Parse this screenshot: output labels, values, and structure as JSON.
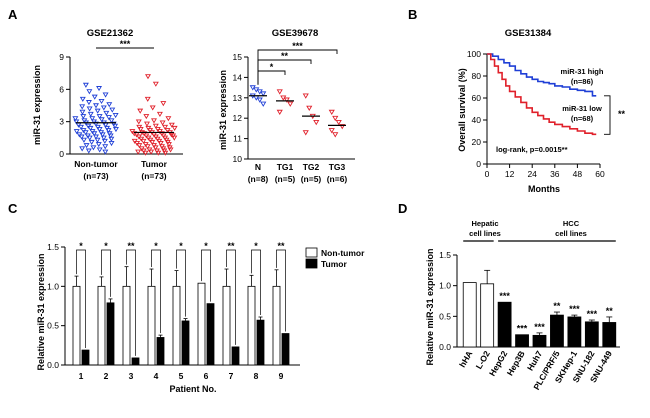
{
  "panel_labels": [
    "A",
    "B",
    "C",
    "D"
  ],
  "chart_data": [
    {
      "id": "A1",
      "type": "scatter",
      "title": "GSE21362",
      "ylabel": "miR-31 expression",
      "ylim": [
        0,
        9
      ],
      "yticks": [
        "0",
        "3",
        "6",
        "9"
      ],
      "groups": [
        {
          "name": "Non-tumor",
          "n": "(n=73)",
          "color": "#1f3fd6",
          "marker": "triangle-down",
          "mean": 2.9,
          "values": [
            6.4,
            6.1,
            5.8,
            5.5,
            5.3,
            5.1,
            4.9,
            4.8,
            4.6,
            4.5,
            4.4,
            4.3,
            4.2,
            4.1,
            4.0,
            3.9,
            3.8,
            3.7,
            3.6,
            3.5,
            3.5,
            3.4,
            3.3,
            3.3,
            3.2,
            3.1,
            3.1,
            3.0,
            3.0,
            2.9,
            2.9,
            2.8,
            2.8,
            2.7,
            2.7,
            2.6,
            2.6,
            2.5,
            2.5,
            2.4,
            2.4,
            2.3,
            2.3,
            2.2,
            2.2,
            2.1,
            2.1,
            2.0,
            2.0,
            1.9,
            1.9,
            1.8,
            1.8,
            1.7,
            1.7,
            1.6,
            1.6,
            1.5,
            1.5,
            1.4,
            1.3,
            1.3,
            1.2,
            1.1,
            1.0,
            0.9,
            0.8,
            0.7,
            0.6,
            0.5,
            0.4,
            0.3,
            0.2
          ]
        },
        {
          "name": "Tumor",
          "n": "(n=73)",
          "color": "#e0202a",
          "marker": "triangle-down",
          "mean": 2.0,
          "values": [
            7.2,
            6.5,
            5.1,
            4.7,
            4.3,
            4.0,
            3.7,
            3.5,
            3.3,
            3.1,
            3.0,
            2.9,
            2.8,
            2.7,
            2.6,
            2.5,
            2.5,
            2.4,
            2.4,
            2.3,
            2.3,
            2.2,
            2.2,
            2.1,
            2.1,
            2.0,
            2.0,
            2.0,
            1.9,
            1.9,
            1.9,
            1.8,
            1.8,
            1.8,
            1.7,
            1.7,
            1.7,
            1.6,
            1.6,
            1.5,
            1.5,
            1.5,
            1.4,
            1.4,
            1.3,
            1.3,
            1.2,
            1.2,
            1.2,
            1.1,
            1.1,
            1.0,
            1.0,
            0.9,
            0.9,
            0.8,
            0.8,
            0.7,
            0.7,
            0.6,
            0.6,
            0.5,
            0.5,
            0.4,
            0.4,
            0.3,
            0.3,
            0.3,
            0.2,
            0.2,
            0.1,
            0.1,
            0.1
          ]
        }
      ],
      "significance": "***"
    },
    {
      "id": "A2",
      "type": "scatter",
      "title": "GSE39678",
      "ylabel": "miR-31 expression",
      "ylim": [
        10,
        15
      ],
      "yticks": [
        "10",
        "11",
        "12",
        "13",
        "14",
        "15"
      ],
      "groups": [
        {
          "name": "N",
          "n": "(n=8)",
          "color": "#1f3fd6",
          "marker": "triangle-down",
          "mean": 13.1,
          "values": [
            13.5,
            13.4,
            13.3,
            13.2,
            13.1,
            13.0,
            12.9,
            12.7
          ]
        },
        {
          "name": "TG1",
          "n": "(n=5)",
          "color": "#e0202a",
          "marker": "triangle-down",
          "mean": 12.85,
          "values": [
            13.3,
            13.0,
            12.9,
            12.7,
            12.3
          ]
        },
        {
          "name": "TG2",
          "n": "(n=5)",
          "color": "#e0202a",
          "marker": "triangle-down",
          "mean": 12.1,
          "values": [
            13.1,
            12.5,
            12.1,
            11.8,
            11.3
          ]
        },
        {
          "name": "TG3",
          "n": "(n=6)",
          "color": "#e0202a",
          "marker": "triangle-down",
          "mean": 11.65,
          "values": [
            12.3,
            12.0,
            11.8,
            11.6,
            11.4,
            11.2
          ]
        }
      ],
      "brackets": [
        {
          "from": 0,
          "to": 1,
          "label": "*"
        },
        {
          "from": 0,
          "to": 2,
          "label": "**"
        },
        {
          "from": 0,
          "to": 3,
          "label": "***"
        }
      ]
    },
    {
      "id": "B",
      "type": "line",
      "title": "GSE31384",
      "xlabel": "Months",
      "ylabel": "Overall survival (%)",
      "xlim": [
        0,
        60
      ],
      "ylim": [
        0,
        100
      ],
      "xticks": [
        "0",
        "12",
        "24",
        "36",
        "48",
        "60"
      ],
      "yticks": [
        "0",
        "20",
        "40",
        "60",
        "80",
        "100"
      ],
      "series": [
        {
          "name": "miR-31 high",
          "n": "(n=86)",
          "color": "#1f3fd6",
          "x": [
            0,
            3,
            6,
            9,
            12,
            15,
            18,
            21,
            24,
            27,
            30,
            33,
            36,
            40,
            44,
            48,
            52,
            56,
            58
          ],
          "y": [
            100,
            98,
            95,
            92,
            89,
            85,
            82,
            79,
            77,
            75,
            74,
            73,
            71,
            70,
            68,
            67,
            66,
            62,
            62
          ]
        },
        {
          "name": "miR-31 low",
          "n": "(n=68)",
          "color": "#e0202a",
          "x": [
            0,
            2,
            4,
            6,
            8,
            10,
            12,
            15,
            18,
            21,
            24,
            27,
            30,
            33,
            36,
            40,
            44,
            48,
            52,
            56,
            58
          ],
          "y": [
            100,
            95,
            89,
            83,
            77,
            71,
            66,
            61,
            56,
            51,
            47,
            44,
            41,
            38,
            36,
            34,
            32,
            30,
            28,
            27,
            27
          ]
        }
      ],
      "annotation_text": "log-rank, p=0.0015**",
      "significance": "**"
    },
    {
      "id": "C",
      "type": "bar",
      "xlabel": "Patient No.",
      "ylabel": "Relative miR-31 expression",
      "ylim": [
        0,
        1.5
      ],
      "yticks": [
        "0.0",
        "0.5",
        "1.0",
        "1.5"
      ],
      "categories": [
        "1",
        "2",
        "3",
        "4",
        "5",
        "6",
        "7",
        "8",
        "9"
      ],
      "series": [
        {
          "name": "Non-tumor",
          "color": "#ffffff",
          "values": [
            1.0,
            1.0,
            1.0,
            1.0,
            1.0,
            1.04,
            1.0,
            1.0,
            1.0
          ],
          "errors": [
            0.13,
            0.12,
            0.25,
            0.22,
            0.2,
            0.0,
            0.22,
            0.14,
            0.21
          ]
        },
        {
          "name": "Tumor",
          "color": "#000000",
          "values": [
            0.19,
            0.79,
            0.09,
            0.35,
            0.56,
            0.78,
            0.23,
            0.57,
            0.4
          ],
          "errors": [
            0.0,
            0.05,
            0.0,
            0.03,
            0.03,
            0.0,
            0.0,
            0.04,
            0.0
          ]
        }
      ],
      "significance": [
        "*",
        "*",
        "**",
        "*",
        "*",
        "*",
        "**",
        "*",
        "**"
      ]
    },
    {
      "id": "D",
      "type": "bar",
      "ylabel": "Relative miR-31 expression",
      "ylim": [
        0,
        1.5
      ],
      "yticks": [
        "0.0",
        "0.5",
        "1.0",
        "1.5"
      ],
      "categories": [
        "hHA",
        "L-O2",
        "HepG2",
        "Hep3B",
        "Huh7",
        "PLC/PRF/5",
        "SKHep-1",
        "SNU-182",
        "SNU-449"
      ],
      "values": [
        1.05,
        1.03,
        0.73,
        0.2,
        0.19,
        0.52,
        0.49,
        0.41,
        0.4
      ],
      "errors": [
        0.0,
        0.22,
        0.0,
        0.0,
        0.04,
        0.05,
        0.03,
        0.03,
        0.09
      ],
      "colors": [
        "#ffffff",
        "#ffffff",
        "#000000",
        "#000000",
        "#000000",
        "#000000",
        "#000000",
        "#000000",
        "#000000"
      ],
      "significance": [
        "",
        "",
        "***",
        "***",
        "***",
        "**",
        "***",
        "***",
        "**"
      ],
      "group_labels": [
        {
          "line1": "Hepatic",
          "line2": "cell lines",
          "from": 0,
          "to": 1
        },
        {
          "line1": "HCC",
          "line2": "cell lines",
          "from": 2,
          "to": 8
        }
      ]
    }
  ]
}
